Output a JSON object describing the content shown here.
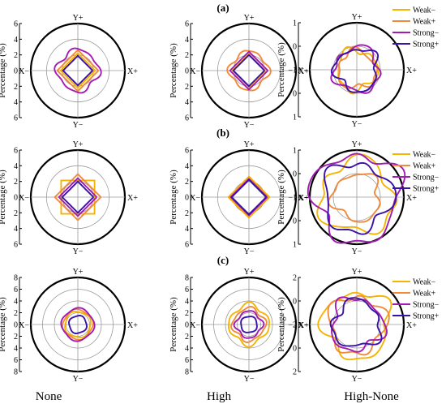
{
  "figure": {
    "row_labels": [
      "(a)",
      "(b)",
      "(c)"
    ],
    "column_labels": [
      "None",
      "High",
      "High-None"
    ],
    "legend": [
      {
        "name": "Weak−",
        "color": "#f5b400"
      },
      {
        "name": "Weak+",
        "color": "#f08a3c"
      },
      {
        "name": "Strong−",
        "color": "#a21cb2"
      },
      {
        "name": "Strong+",
        "color": "#3a12a8"
      }
    ],
    "direction_labels": {
      "top": "Y+",
      "bottom": "Y−",
      "left": "X−",
      "right": "X+"
    },
    "axis_label": "Percentage (%)"
  },
  "chart_data": [
    {
      "type": "polar",
      "panel": "a-None",
      "radial_ticks": [
        "6",
        "4",
        "2",
        "0",
        "2",
        "4",
        "6"
      ],
      "rmax": 6,
      "rings": [
        2,
        4
      ],
      "series": [
        {
          "name": "Weak−",
          "radius": 2.1,
          "shape": "diamond"
        },
        {
          "name": "Weak+",
          "radius": 2.5,
          "shape": "diamond"
        },
        {
          "name": "Strong−",
          "radius": 2.6,
          "shape": "wavy"
        },
        {
          "name": "Strong+",
          "radius": 1.8,
          "shape": "diamond"
        }
      ]
    },
    {
      "type": "polar",
      "panel": "a-High",
      "radial_ticks": [
        "6",
        "4",
        "2",
        "0",
        "2",
        "4",
        "6"
      ],
      "rmax": 6,
      "rings": [
        2,
        4
      ],
      "series": [
        {
          "name": "Weak−",
          "radius": 2.0,
          "shape": "diamond"
        },
        {
          "name": "Weak+",
          "radius": 2.4,
          "shape": "wavy"
        },
        {
          "name": "Strong−",
          "radius": 2.3,
          "shape": "diamond"
        },
        {
          "name": "Strong+",
          "radius": 1.9,
          "shape": "diamond"
        }
      ]
    },
    {
      "type": "polar",
      "panel": "a-High-None",
      "radial_ticks": [
        "1",
        "0",
        "−1",
        "0",
        "1"
      ],
      "rmax": 2,
      "rings": [
        1
      ],
      "series": [
        {
          "name": "Weak−",
          "radius": 0.85,
          "shape": "irregular"
        },
        {
          "name": "Weak+",
          "radius": 0.8,
          "shape": "irregular"
        },
        {
          "name": "Strong−",
          "radius": 0.95,
          "shape": "irregular"
        },
        {
          "name": "Strong+",
          "radius": 0.9,
          "shape": "irregular"
        }
      ]
    },
    {
      "type": "polar",
      "panel": "b-None",
      "radial_ticks": [
        "6",
        "4",
        "2",
        "0",
        "2",
        "4",
        "6"
      ],
      "rmax": 6,
      "rings": [
        2,
        4
      ],
      "series": [
        {
          "name": "Weak−",
          "radius": 2.6,
          "shape": "square"
        },
        {
          "name": "Weak+",
          "radius": 2.8,
          "shape": "diamond"
        },
        {
          "name": "Strong−",
          "radius": 2.3,
          "shape": "diamond"
        },
        {
          "name": "Strong+",
          "radius": 1.9,
          "shape": "diamond"
        }
      ]
    },
    {
      "type": "polar",
      "panel": "b-High",
      "radial_ticks": [
        "6",
        "4",
        "2",
        "0",
        "2",
        "4",
        "6"
      ],
      "rmax": 6,
      "rings": [
        2,
        4
      ],
      "series": [
        {
          "name": "Weak−",
          "radius": 2.5,
          "shape": "diamond"
        },
        {
          "name": "Weak+",
          "radius": 2.3,
          "shape": "diamond"
        },
        {
          "name": "Strong−",
          "radius": 2.2,
          "shape": "diamond"
        },
        {
          "name": "Strong+",
          "radius": 2.1,
          "shape": "diamond"
        }
      ]
    },
    {
      "type": "polar",
      "panel": "b-High-None",
      "radial_ticks": [
        "1",
        "0",
        "−1",
        "0",
        "1"
      ],
      "rmax": 2,
      "rings": [
        1
      ],
      "series": [
        {
          "name": "Weak−",
          "radius": 1.55,
          "shape": "irregular"
        },
        {
          "name": "Weak+",
          "radius": 1.0,
          "shape": "irregular"
        },
        {
          "name": "Strong−",
          "radius": 1.85,
          "shape": "irregular"
        },
        {
          "name": "Strong+",
          "radius": 1.45,
          "shape": "irregular"
        }
      ]
    },
    {
      "type": "polar",
      "panel": "c-None",
      "radial_ticks": [
        "8",
        "6",
        "4",
        "2",
        "0",
        "2",
        "4",
        "6",
        "8"
      ],
      "rmax": 8,
      "rings": [
        2,
        4,
        6
      ],
      "series": [
        {
          "name": "Weak−",
          "radius": 2.2,
          "shape": "round"
        },
        {
          "name": "Weak+",
          "radius": 2.5,
          "shape": "round"
        },
        {
          "name": "Strong−",
          "radius": 2.7,
          "shape": "round"
        },
        {
          "name": "Strong+",
          "radius": 1.5,
          "shape": "round"
        }
      ]
    },
    {
      "type": "polar",
      "panel": "c-High",
      "radial_ticks": [
        "8",
        "6",
        "4",
        "2",
        "0",
        "2",
        "4",
        "6",
        "8"
      ],
      "rmax": 8,
      "rings": [
        2,
        4,
        6
      ],
      "series": [
        {
          "name": "Weak−",
          "radius": 3.3,
          "shape": "wavy"
        },
        {
          "name": "Weak+",
          "radius": 2.7,
          "shape": "wavy"
        },
        {
          "name": "Strong−",
          "radius": 2.2,
          "shape": "wavy"
        },
        {
          "name": "Strong+",
          "radius": 1.4,
          "shape": "round"
        }
      ]
    },
    {
      "type": "polar",
      "panel": "c-High-None",
      "radial_ticks": [
        "2",
        "0",
        "−2",
        "0",
        "2"
      ],
      "rmax": 4,
      "rings": [
        2
      ],
      "series": [
        {
          "name": "Weak−",
          "radius": 2.8,
          "shape": "irregular"
        },
        {
          "name": "Weak+",
          "radius": 2.4,
          "shape": "irregular"
        },
        {
          "name": "Strong−",
          "radius": 2.2,
          "shape": "irregular"
        },
        {
          "name": "Strong+",
          "radius": 2.0,
          "shape": "irregular"
        }
      ]
    }
  ]
}
